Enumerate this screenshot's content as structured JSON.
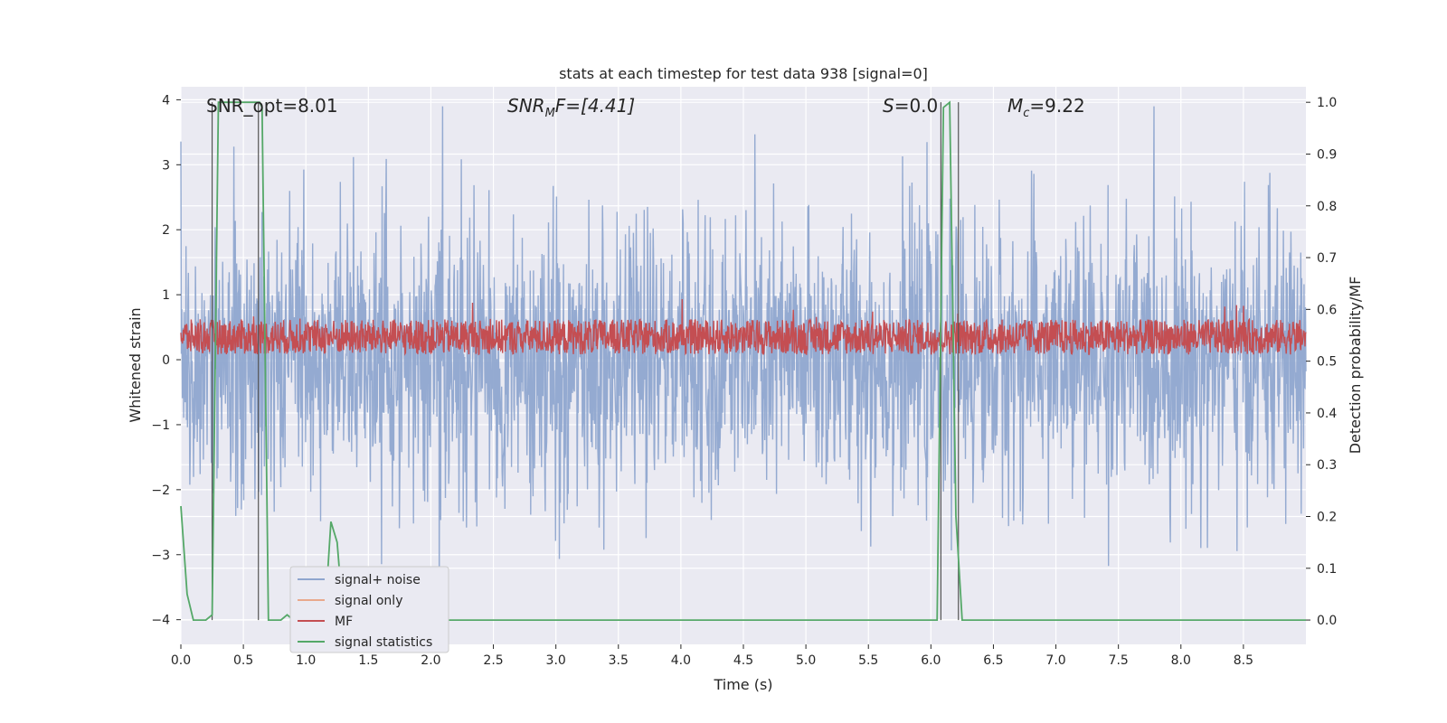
{
  "chart_data": {
    "type": "line",
    "title": "stats at each timestep for test data 938 [signal=0]",
    "xlabel": "Time (s)",
    "ylabel": "Whitened strain",
    "ylabel_right": "Detection probability/MF",
    "xlim": [
      0,
      9.0
    ],
    "ylim": [
      -4.38,
      4.2
    ],
    "ylim_right": [
      -0.047,
      1.03
    ],
    "xticks": [
      "0.0",
      "0.5",
      "1.0",
      "1.5",
      "2.0",
      "2.5",
      "3.0",
      "3.5",
      "4.0",
      "4.5",
      "5.0",
      "5.5",
      "6.0",
      "6.5",
      "7.0",
      "7.5",
      "8.0",
      "8.5"
    ],
    "yticks": [
      "4",
      "3",
      "2",
      "1",
      "0",
      "−1",
      "−2",
      "−3",
      "−4"
    ],
    "yticks_right": [
      "1.0",
      "0.9",
      "0.8",
      "0.7",
      "0.6",
      "0.5",
      "0.4",
      "0.3",
      "0.2",
      "0.1",
      "0.0"
    ],
    "grid": true,
    "legend_position": "lower-left",
    "annotations": {
      "snr_opt": "SNR_opt=8.01",
      "snr_mf_base": "SNR",
      "snr_mf_sub": "M",
      "snr_mf_rest": "F=[4.41]",
      "s_var": "S",
      "s_rest": "=0.0",
      "mc_var": "M",
      "mc_sub": "c",
      "mc_rest": "=9.22"
    },
    "series": [
      {
        "name": "signal+ noise",
        "color": "#8fa6cf",
        "description_points": "noise band mostly within ±1.7, peaks to ±3.8",
        "envelope": {
          "typical": 1.7,
          "max": 3.9
        }
      },
      {
        "name": "signal only",
        "color": "#e9a98c",
        "values": []
      },
      {
        "name": "MF",
        "color": "#c44e52",
        "envelope": {
          "center": 0.35,
          "amplitude": 0.3
        }
      },
      {
        "name": "signal statistics",
        "color": "#55a868",
        "x": [
          0.0,
          0.05,
          0.1,
          0.15,
          0.2,
          0.25,
          0.3,
          0.35,
          0.4,
          0.45,
          0.5,
          0.55,
          0.6,
          0.63,
          0.65,
          0.7,
          0.75,
          0.8,
          0.85,
          0.9,
          0.95,
          1.0,
          1.05,
          1.1,
          1.15,
          1.2,
          1.25,
          1.3,
          1.35,
          1.4,
          1.5,
          2.0,
          3.0,
          4.0,
          5.0,
          6.0,
          6.05,
          6.1,
          6.15,
          6.2,
          6.25,
          6.3,
          6.35,
          6.5,
          7.0,
          8.0,
          9.0
        ],
        "y": [
          0.22,
          0.05,
          0.0,
          0.0,
          0.0,
          0.01,
          1.0,
          1.0,
          1.0,
          1.0,
          1.0,
          1.0,
          1.0,
          1.0,
          0.99,
          0.0,
          0.0,
          0.0,
          0.01,
          0.0,
          0.0,
          0.0,
          0.0,
          0.0,
          0.0,
          0.19,
          0.15,
          0.0,
          0.0,
          0.0,
          0.0,
          0.0,
          0.0,
          0.0,
          0.0,
          0.0,
          0.0,
          0.99,
          1.0,
          0.2,
          0.0,
          0.0,
          0.0,
          0.0,
          0.0,
          0.0,
          0.0
        ]
      }
    ],
    "vlines_x": [
      0.25,
      0.62,
      6.08,
      6.22
    ]
  }
}
